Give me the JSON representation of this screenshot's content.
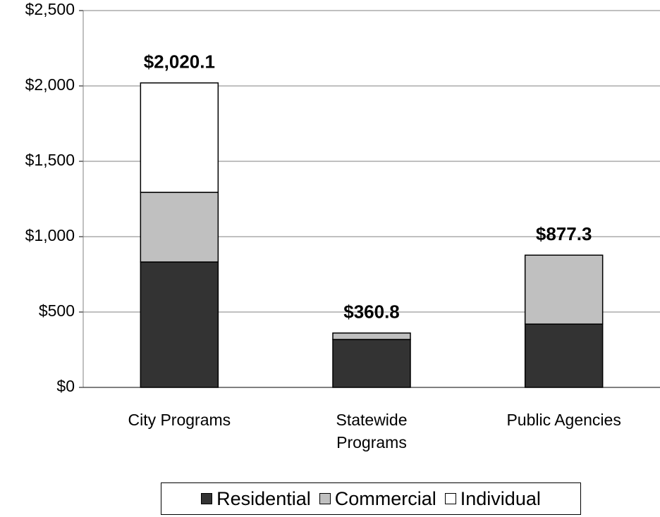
{
  "chart_data": {
    "type": "stacked_bar",
    "categories": [
      "City Programs",
      "Statewide\nPrograms",
      "Public Agencies"
    ],
    "series": [
      {
        "name": "Residential",
        "color": "#333333",
        "values": [
          832,
          318,
          420
        ]
      },
      {
        "name": "Commercial",
        "color": "#c0c0c0",
        "values": [
          462,
          42.8,
          457.3
        ]
      },
      {
        "name": "Individual",
        "color": "#ffffff",
        "values": [
          726.1,
          null,
          null
        ]
      }
    ],
    "totals": [
      2020.1,
      360.8,
      877.3
    ],
    "total_labels": [
      "$2,020.1",
      "$360.8",
      "$877.3"
    ],
    "ylim": [
      0,
      2500
    ],
    "yticks": [
      {
        "value": 0,
        "label": "$0"
      },
      {
        "value": 500,
        "label": "$500"
      },
      {
        "value": 1000,
        "label": "$1,000"
      },
      {
        "value": 1500,
        "label": "$1,500"
      },
      {
        "value": 2000,
        "label": "$2,000"
      },
      {
        "value": 2500,
        "label": "$2,500"
      }
    ],
    "grid": true,
    "legend": "bottom"
  }
}
